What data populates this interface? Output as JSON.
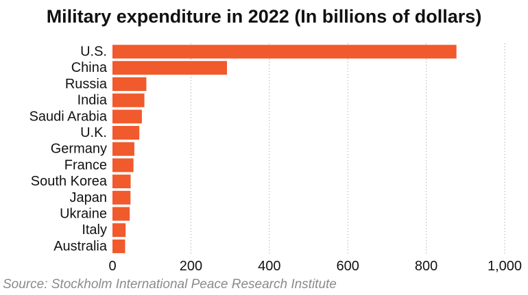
{
  "chart_data": {
    "type": "bar",
    "orientation": "horizontal",
    "title": "Military expenditure in 2022 (In billions of dollars)",
    "categories": [
      "U.S.",
      "China",
      "Russia",
      "India",
      "Saudi Arabia",
      "U.K.",
      "Germany",
      "France",
      "South Korea",
      "Japan",
      "Ukraine",
      "Italy",
      "Australia"
    ],
    "values": [
      877,
      292,
      86.4,
      81.4,
      75,
      68.5,
      55.8,
      53.6,
      46.4,
      46,
      44,
      33.5,
      32.3
    ],
    "xlim": [
      0,
      1000
    ],
    "xticks": [
      0,
      200,
      400,
      600,
      800,
      1000
    ],
    "xtick_labels": [
      "0",
      "200",
      "400",
      "600",
      "800",
      "1,000"
    ],
    "grid": "vertical dotted",
    "bar_color": "#f05a2c",
    "source": "Source: Stockholm International Peace Research Institute"
  }
}
